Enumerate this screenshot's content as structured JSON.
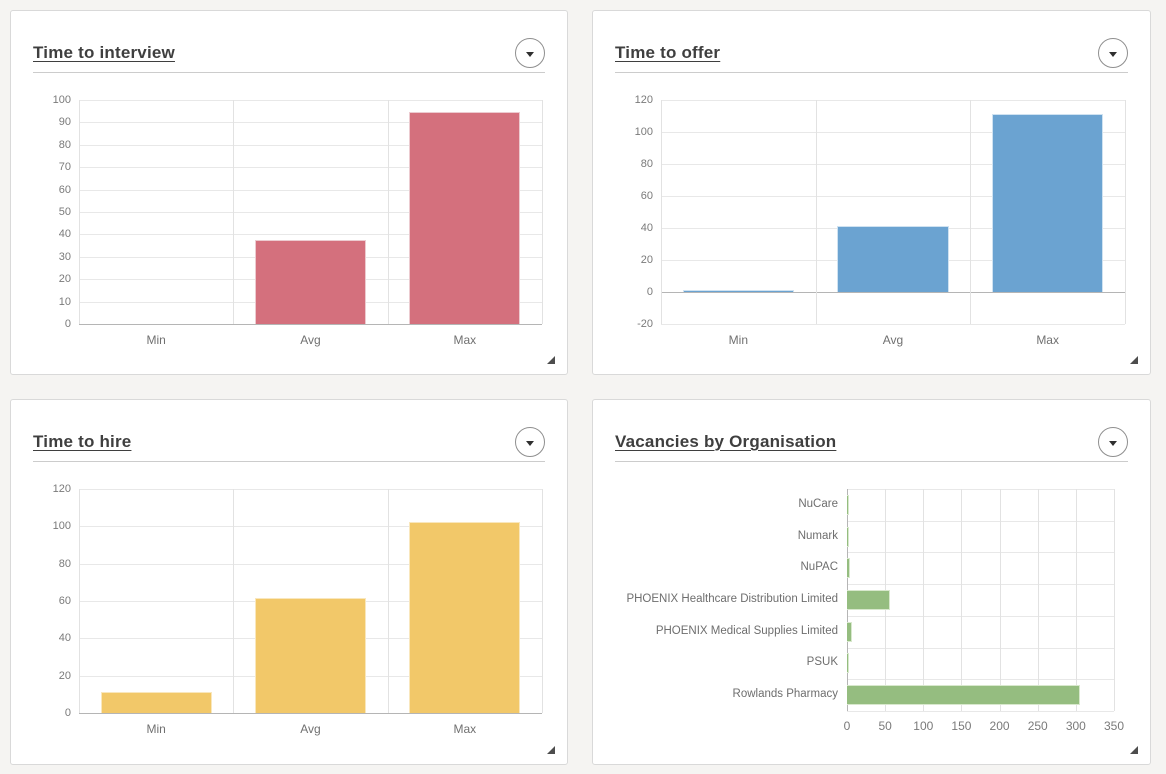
{
  "page": {
    "background": "#f5f4f2"
  },
  "ui": {
    "collapse_icon": "chevron-down",
    "resize_icon": "resize-grip-triangle",
    "panel_border_color": "#d9d9d9",
    "title_color": "#3f3f3f"
  },
  "chart_data": [
    {
      "type": "bar",
      "orientation": "vertical",
      "title": "Time to interview",
      "categories": [
        "Min",
        "Avg",
        "Max"
      ],
      "values": [
        0,
        37.5,
        94.5
      ],
      "ylim": [
        0,
        100
      ],
      "ytick_step": 10,
      "xlabel": "",
      "ylabel": "",
      "grid": true,
      "legend": "none",
      "bar_color": "#d4707d",
      "bar_border_color": "#eccbd0"
    },
    {
      "type": "bar",
      "orientation": "vertical",
      "title": "Time to offer",
      "categories": [
        "Min",
        "Avg",
        "Max"
      ],
      "values": [
        1,
        41.5,
        111
      ],
      "ylim": [
        -20,
        120
      ],
      "ytick_step": 20,
      "xlabel": "",
      "ylabel": "",
      "grid": true,
      "legend": "none",
      "bar_color": "#6ba3d1",
      "bar_border_color": "#cfe2f1"
    },
    {
      "type": "bar",
      "orientation": "vertical",
      "title": "Time to hire",
      "categories": [
        "Min",
        "Avg",
        "Max"
      ],
      "values": [
        11.5,
        61.5,
        102.5
      ],
      "ylim": [
        0,
        120
      ],
      "ytick_step": 20,
      "xlabel": "",
      "ylabel": "",
      "grid": true,
      "legend": "none",
      "bar_color": "#f2c869",
      "bar_border_color": "#f9e7bd"
    },
    {
      "type": "bar",
      "orientation": "horizontal",
      "title": "Vacancies by Organisation",
      "categories": [
        "NuCare",
        "Numark",
        "NuPAC",
        "PHOENIX Healthcare Distribution Limited",
        "PHOENIX Medical Supplies Limited",
        "PSUK",
        "Rowlands Pharmacy"
      ],
      "values": [
        3,
        1,
        4,
        57,
        6,
        1,
        305
      ],
      "xlim": [
        0,
        350
      ],
      "xtick_step": 50,
      "xlabel": "",
      "ylabel": "",
      "grid": true,
      "legend": "none",
      "bar_color": "#95bd80",
      "bar_border_color": "#d8e8cd"
    }
  ]
}
